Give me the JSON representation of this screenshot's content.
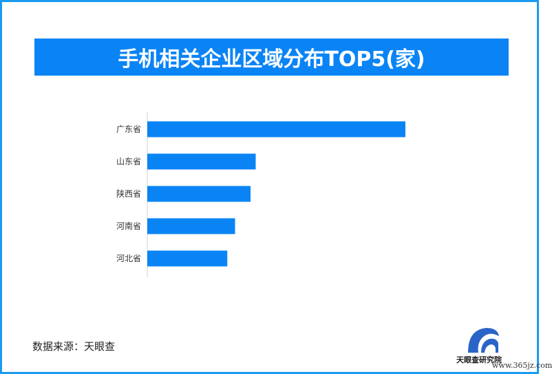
{
  "title": "手机相关企业区域分布TOP5(家)",
  "source": "数据来源：天眼查",
  "logo": {
    "name": "天眼查研究院",
    "watermark": "www.365jz.com"
  },
  "colors": {
    "accent": "#0a84f5",
    "bar": "#0a84f5",
    "frame": "#1a9af0"
  },
  "chart_data": {
    "type": "bar",
    "orientation": "horizontal",
    "categories": [
      "广东省",
      "山东省",
      "陕西省",
      "河南省",
      "河北省"
    ],
    "values": [
      100,
      42,
      40,
      34,
      31
    ],
    "title": "手机相关企业区域分布TOP5(家)",
    "xlabel": "",
    "ylabel": "",
    "xlim": [
      0,
      100
    ],
    "grid": false,
    "legend": "none"
  }
}
